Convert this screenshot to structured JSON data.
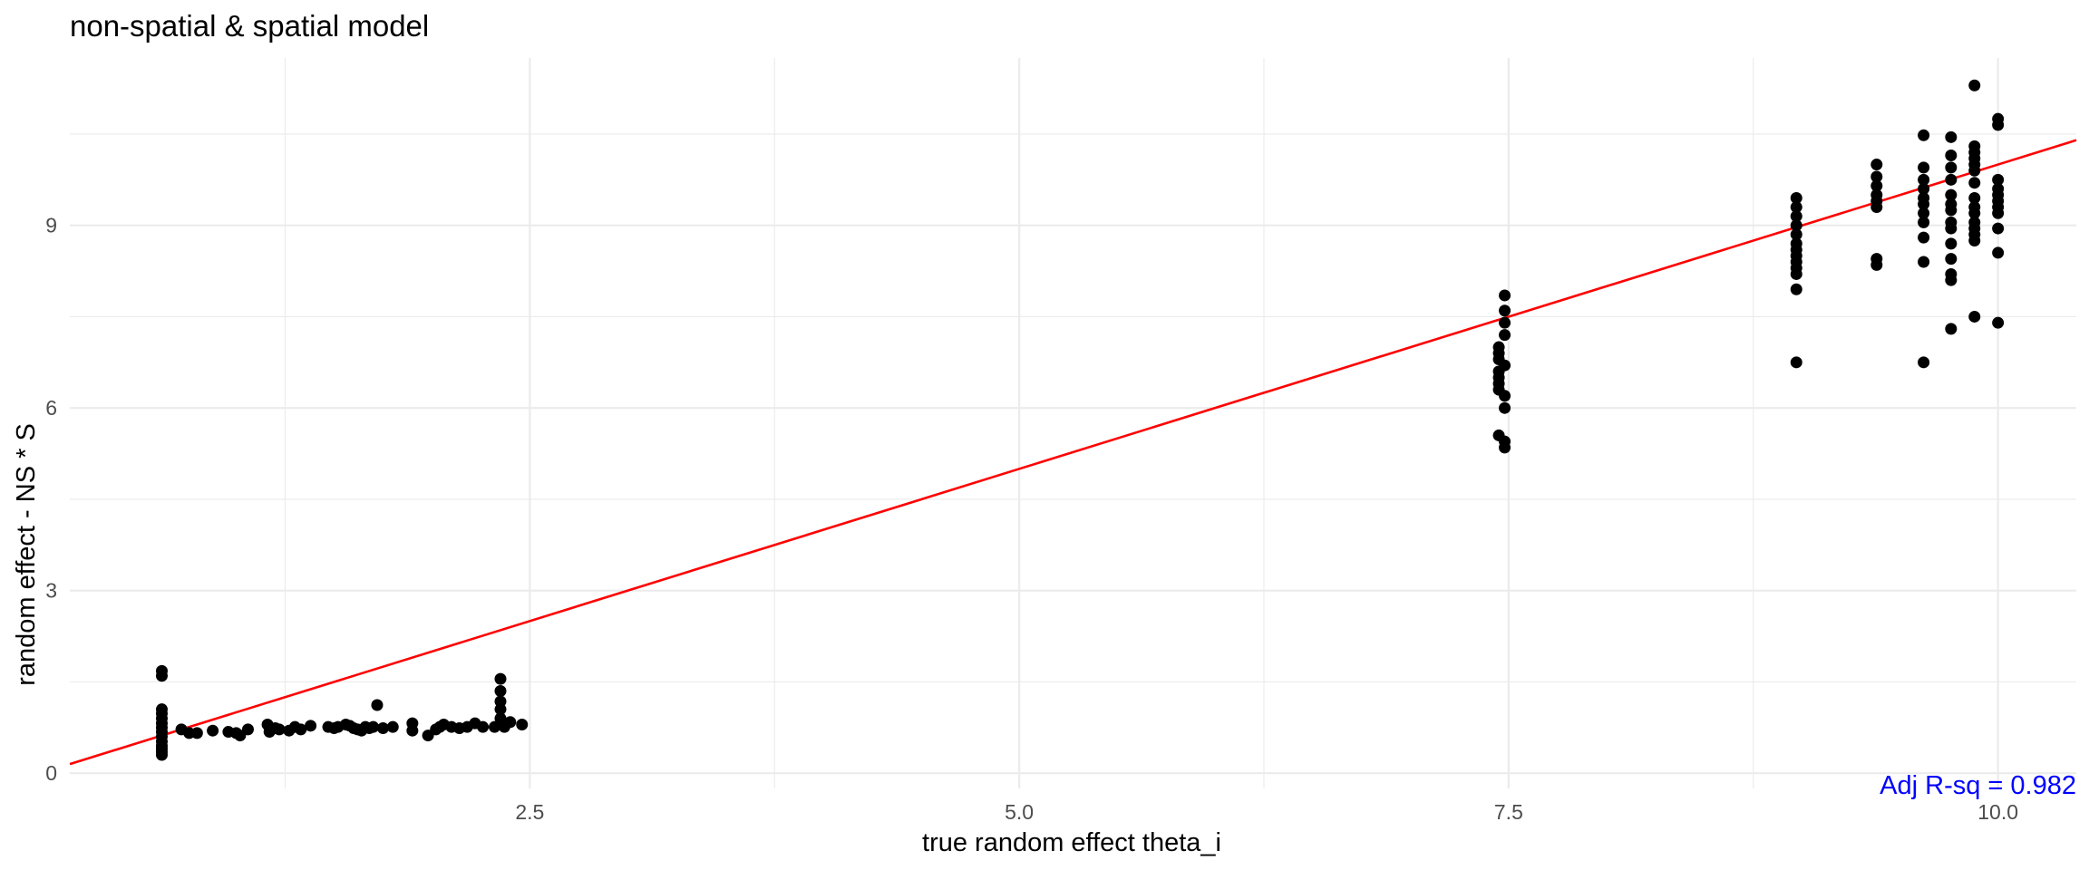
{
  "chart_data": {
    "type": "scatter",
    "title": "non-spatial & spatial model",
    "xlabel": "true random effect theta_i",
    "ylabel": "random effect - NS * S",
    "xlim": [
      0.15,
      10.4
    ],
    "ylim": [
      -0.25,
      11.75
    ],
    "x_ticks": [
      2.5,
      5.0,
      7.5,
      10.0
    ],
    "x_tick_labels": [
      "2.5",
      "5.0",
      "7.5",
      "10.0"
    ],
    "y_ticks": [
      0,
      3,
      6,
      9
    ],
    "y_tick_labels": [
      "0",
      "3",
      "6",
      "9"
    ],
    "grid": true,
    "annotation": "Adj R-sq = 0.982",
    "colors": {
      "points": "#000000",
      "fit_line": "#ff0000",
      "annotation": "#0000ff",
      "grid": "#ebebeb"
    },
    "fit_line": {
      "intercept": 0.0,
      "slope": 1.0
    },
    "points": [
      [
        0.62,
        1.68
      ],
      [
        0.62,
        1.6
      ],
      [
        0.62,
        1.05
      ],
      [
        0.62,
        0.98
      ],
      [
        0.62,
        0.9
      ],
      [
        0.62,
        0.82
      ],
      [
        0.62,
        0.75
      ],
      [
        0.62,
        0.68
      ],
      [
        0.62,
        0.6
      ],
      [
        0.62,
        0.52
      ],
      [
        0.62,
        0.45
      ],
      [
        0.62,
        0.4
      ],
      [
        0.62,
        0.35
      ],
      [
        0.62,
        0.3
      ],
      [
        0.72,
        0.72
      ],
      [
        0.76,
        0.66
      ],
      [
        0.8,
        0.66
      ],
      [
        0.88,
        0.7
      ],
      [
        0.96,
        0.68
      ],
      [
        1.0,
        0.66
      ],
      [
        1.02,
        0.62
      ],
      [
        1.06,
        0.72
      ],
      [
        1.16,
        0.8
      ],
      [
        1.17,
        0.68
      ],
      [
        1.2,
        0.74
      ],
      [
        1.22,
        0.72
      ],
      [
        1.27,
        0.7
      ],
      [
        1.3,
        0.76
      ],
      [
        1.33,
        0.72
      ],
      [
        1.38,
        0.78
      ],
      [
        1.47,
        0.76
      ],
      [
        1.5,
        0.74
      ],
      [
        1.52,
        0.76
      ],
      [
        1.56,
        0.8
      ],
      [
        1.58,
        0.78
      ],
      [
        1.6,
        0.74
      ],
      [
        1.62,
        0.72
      ],
      [
        1.64,
        0.7
      ],
      [
        1.66,
        0.76
      ],
      [
        1.68,
        0.74
      ],
      [
        1.7,
        0.76
      ],
      [
        1.72,
        1.12
      ],
      [
        1.75,
        0.74
      ],
      [
        1.8,
        0.76
      ],
      [
        1.9,
        0.82
      ],
      [
        1.9,
        0.7
      ],
      [
        1.98,
        0.62
      ],
      [
        2.02,
        0.72
      ],
      [
        2.04,
        0.76
      ],
      [
        2.06,
        0.8
      ],
      [
        2.1,
        0.76
      ],
      [
        2.14,
        0.74
      ],
      [
        2.18,
        0.76
      ],
      [
        2.22,
        0.82
      ],
      [
        2.26,
        0.76
      ],
      [
        2.32,
        0.76
      ],
      [
        2.35,
        1.55
      ],
      [
        2.35,
        1.35
      ],
      [
        2.35,
        1.18
      ],
      [
        2.35,
        1.05
      ],
      [
        2.35,
        0.9
      ],
      [
        2.37,
        0.76
      ],
      [
        2.4,
        0.84
      ],
      [
        2.46,
        0.8
      ],
      [
        7.45,
        7.0
      ],
      [
        7.45,
        6.9
      ],
      [
        7.45,
        6.8
      ],
      [
        7.45,
        6.6
      ],
      [
        7.45,
        6.5
      ],
      [
        7.45,
        6.4
      ],
      [
        7.45,
        6.3
      ],
      [
        7.45,
        5.55
      ],
      [
        7.48,
        7.85
      ],
      [
        7.48,
        7.6
      ],
      [
        7.48,
        7.4
      ],
      [
        7.48,
        7.2
      ],
      [
        7.48,
        6.7
      ],
      [
        7.48,
        6.2
      ],
      [
        7.48,
        6.0
      ],
      [
        7.48,
        5.45
      ],
      [
        7.48,
        5.35
      ],
      [
        8.97,
        9.45
      ],
      [
        8.97,
        9.3
      ],
      [
        8.97,
        9.15
      ],
      [
        8.97,
        9.0
      ],
      [
        8.97,
        8.85
      ],
      [
        8.97,
        8.7
      ],
      [
        8.97,
        8.6
      ],
      [
        8.97,
        8.5
      ],
      [
        8.97,
        8.4
      ],
      [
        8.97,
        8.3
      ],
      [
        8.97,
        8.2
      ],
      [
        8.97,
        7.95
      ],
      [
        8.97,
        6.75
      ],
      [
        9.38,
        10.0
      ],
      [
        9.38,
        9.8
      ],
      [
        9.38,
        9.65
      ],
      [
        9.38,
        9.5
      ],
      [
        9.38,
        9.4
      ],
      [
        9.38,
        9.3
      ],
      [
        9.38,
        8.45
      ],
      [
        9.38,
        8.35
      ],
      [
        9.62,
        10.48
      ],
      [
        9.62,
        9.95
      ],
      [
        9.62,
        9.75
      ],
      [
        9.62,
        9.6
      ],
      [
        9.62,
        9.45
      ],
      [
        9.62,
        9.35
      ],
      [
        9.62,
        9.2
      ],
      [
        9.62,
        9.05
      ],
      [
        9.62,
        8.8
      ],
      [
        9.62,
        8.4
      ],
      [
        9.62,
        6.75
      ],
      [
        9.76,
        10.45
      ],
      [
        9.76,
        10.15
      ],
      [
        9.76,
        9.95
      ],
      [
        9.76,
        9.75
      ],
      [
        9.76,
        9.5
      ],
      [
        9.76,
        9.35
      ],
      [
        9.76,
        9.25
      ],
      [
        9.76,
        9.05
      ],
      [
        9.76,
        8.95
      ],
      [
        9.76,
        8.7
      ],
      [
        9.76,
        8.45
      ],
      [
        9.76,
        8.2
      ],
      [
        9.76,
        8.1
      ],
      [
        9.76,
        7.3
      ],
      [
        9.88,
        11.3
      ],
      [
        9.88,
        10.3
      ],
      [
        9.88,
        10.2
      ],
      [
        9.88,
        10.1
      ],
      [
        9.88,
        10.0
      ],
      [
        9.88,
        9.9
      ],
      [
        9.88,
        9.7
      ],
      [
        9.88,
        9.45
      ],
      [
        9.88,
        9.3
      ],
      [
        9.88,
        9.2
      ],
      [
        9.88,
        9.05
      ],
      [
        9.88,
        8.95
      ],
      [
        9.88,
        8.85
      ],
      [
        9.88,
        8.75
      ],
      [
        9.88,
        7.5
      ],
      [
        10.0,
        10.75
      ],
      [
        10.0,
        10.65
      ],
      [
        10.0,
        9.75
      ],
      [
        10.0,
        9.6
      ],
      [
        10.0,
        9.5
      ],
      [
        10.0,
        9.4
      ],
      [
        10.0,
        9.3
      ],
      [
        10.0,
        9.2
      ],
      [
        10.0,
        8.95
      ],
      [
        10.0,
        8.55
      ],
      [
        10.0,
        7.4
      ]
    ]
  }
}
